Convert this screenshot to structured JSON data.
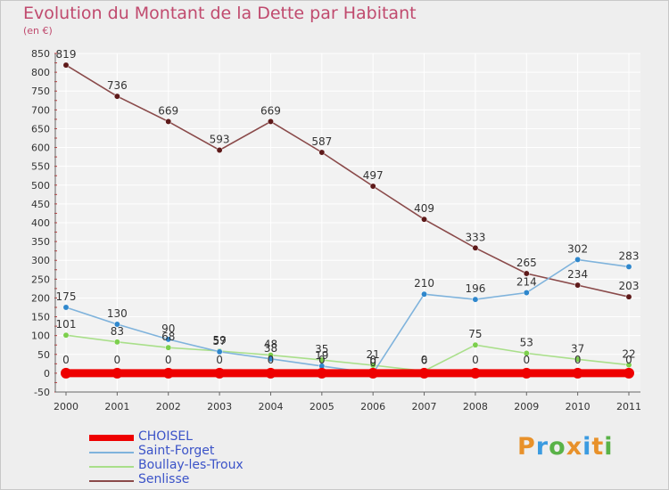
{
  "header": {
    "title": "Evolution du Montant de la Dette par Habitant",
    "subtitle": "(en €)"
  },
  "brand": {
    "letters": [
      "P",
      "r",
      "o",
      "x",
      "i",
      "t",
      "i"
    ],
    "colors": [
      "#e8912a",
      "#3b9be0",
      "#59b247",
      "#e8912a",
      "#3b9be0",
      "#e8912a",
      "#59b247"
    ]
  },
  "chart_data": {
    "type": "line",
    "title": "Evolution du Montant de la Dette par Habitant",
    "ylabel": "(en €)",
    "xlabel": "",
    "x": [
      "2000",
      "2001",
      "2002",
      "2003",
      "2004",
      "2005",
      "2006",
      "2007",
      "2008",
      "2009",
      "2010",
      "2011"
    ],
    "ylim": [
      -50,
      850
    ],
    "yticks": [
      -50,
      0,
      50,
      100,
      150,
      200,
      250,
      300,
      350,
      400,
      450,
      500,
      550,
      600,
      650,
      700,
      750,
      800,
      850
    ],
    "grid": true,
    "legend_position": "bottom-left",
    "series": [
      {
        "name": "CHOISEL",
        "color": "#ee0000",
        "marker_color": "#ee0000",
        "values": [
          0,
          0,
          0,
          0,
          0,
          0,
          0,
          0,
          0,
          0,
          0,
          0
        ],
        "labels": [
          "0",
          "0",
          "0",
          "0",
          "0",
          "0",
          "0",
          "0",
          "0",
          "0",
          "0",
          "0"
        ]
      },
      {
        "name": "Saint-Forget",
        "color": "#7fb3dc",
        "marker_color": "#2f87cc",
        "values": [
          175,
          130,
          90,
          57,
          38,
          19,
          0,
          210,
          196,
          214,
          302,
          283
        ],
        "labels": [
          "175",
          "130",
          "90",
          "57",
          "38",
          "19",
          "0",
          "210",
          "196",
          "214",
          "302",
          "283"
        ]
      },
      {
        "name": "Boullay-les-Troux",
        "color": "#a9df8a",
        "marker_color": "#7ccf4d",
        "values": [
          101,
          83,
          68,
          59,
          48,
          35,
          21,
          6,
          75,
          53,
          37,
          22
        ],
        "labels": [
          "101",
          "83",
          "68",
          "59",
          "48",
          "35",
          "21",
          "6",
          "75",
          "53",
          "37",
          "22"
        ]
      },
      {
        "name": "Senlisse",
        "color": "#8a4a4a",
        "marker_color": "#5e1a1a",
        "values": [
          819,
          736,
          669,
          593,
          669,
          587,
          497,
          409,
          333,
          265,
          234,
          203
        ],
        "labels": [
          "819",
          "736",
          "669",
          "593",
          "669",
          "587",
          "497",
          "409",
          "333",
          "265",
          "234",
          "203"
        ]
      }
    ]
  }
}
